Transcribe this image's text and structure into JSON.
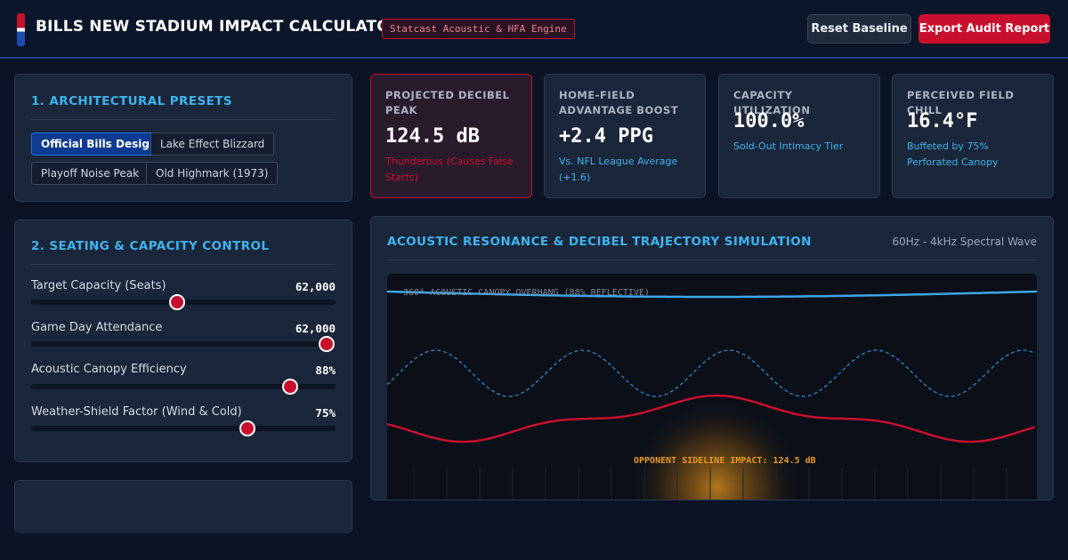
{
  "header": {
    "title": "BILLS NEW STADIUM IMPACT CALCULATOR",
    "badge": "Statcast Acoustic & HFA Engine",
    "reset_label": "Reset Baseline",
    "export_label": "Export Audit Report"
  },
  "presets": {
    "title": "1. ARCHITECTURAL PRESETS",
    "items": [
      "Official Bills Design",
      "Lake Effect Blizzard",
      "Playoff Noise Peak",
      "Old Highmark (1973)"
    ],
    "active": "Official Bills Design"
  },
  "seating": {
    "title": "2. SEATING & CAPACITY CONTROL",
    "sliders": [
      {
        "label": "Target Capacity (Seats)",
        "value": "62,000",
        "fraction": 0.48
      },
      {
        "label": "Game Day Attendance",
        "value": "62,000",
        "fraction": 0.97
      },
      {
        "label": "Acoustic Canopy Efficiency",
        "value": "88%",
        "fraction": 0.85
      },
      {
        "label": "Weather-Shield Factor (Wind & Cold)",
        "value": "75%",
        "fraction": 0.71
      }
    ]
  },
  "stats": [
    {
      "label": "PROJECTED DECIBEL PEAK",
      "value": "124.5 dB",
      "note": "Thunderous (Causes False Starts)",
      "alert": true
    },
    {
      "label": "HOME-FIELD ADVANTAGE BOOST",
      "value": "+2.4 PPG",
      "note": "Vs. NFL League Average (+1.6)",
      "alert": false
    },
    {
      "label": "CAPACITY UTILIZATION",
      "value": "100.0%",
      "note": "Sold-Out Intimacy Tier",
      "alert": false
    },
    {
      "label": "PERCEIVED FIELD CHILL",
      "value": "16.4°F",
      "note": "Buffeted by 75% Perforated Canopy",
      "alert": false
    }
  ],
  "simulation": {
    "title": "ACOUSTIC RESONANCE & DECIBEL TRAJECTORY SIMULATION",
    "subtitle": "60Hz - 4kHz Spectral Wave",
    "canopy_label": "360° ACOUSTIC CANOPY OVERHANG (88% REFLECTIVE)",
    "impact_label": "OPPONENT SIDELINE IMPACT: 124.5 dB",
    "colors": {
      "canopy": "#3ea6e8",
      "wave": "#c8102e",
      "reflection": "#2f86c8",
      "impact": "#e89a1c"
    }
  }
}
